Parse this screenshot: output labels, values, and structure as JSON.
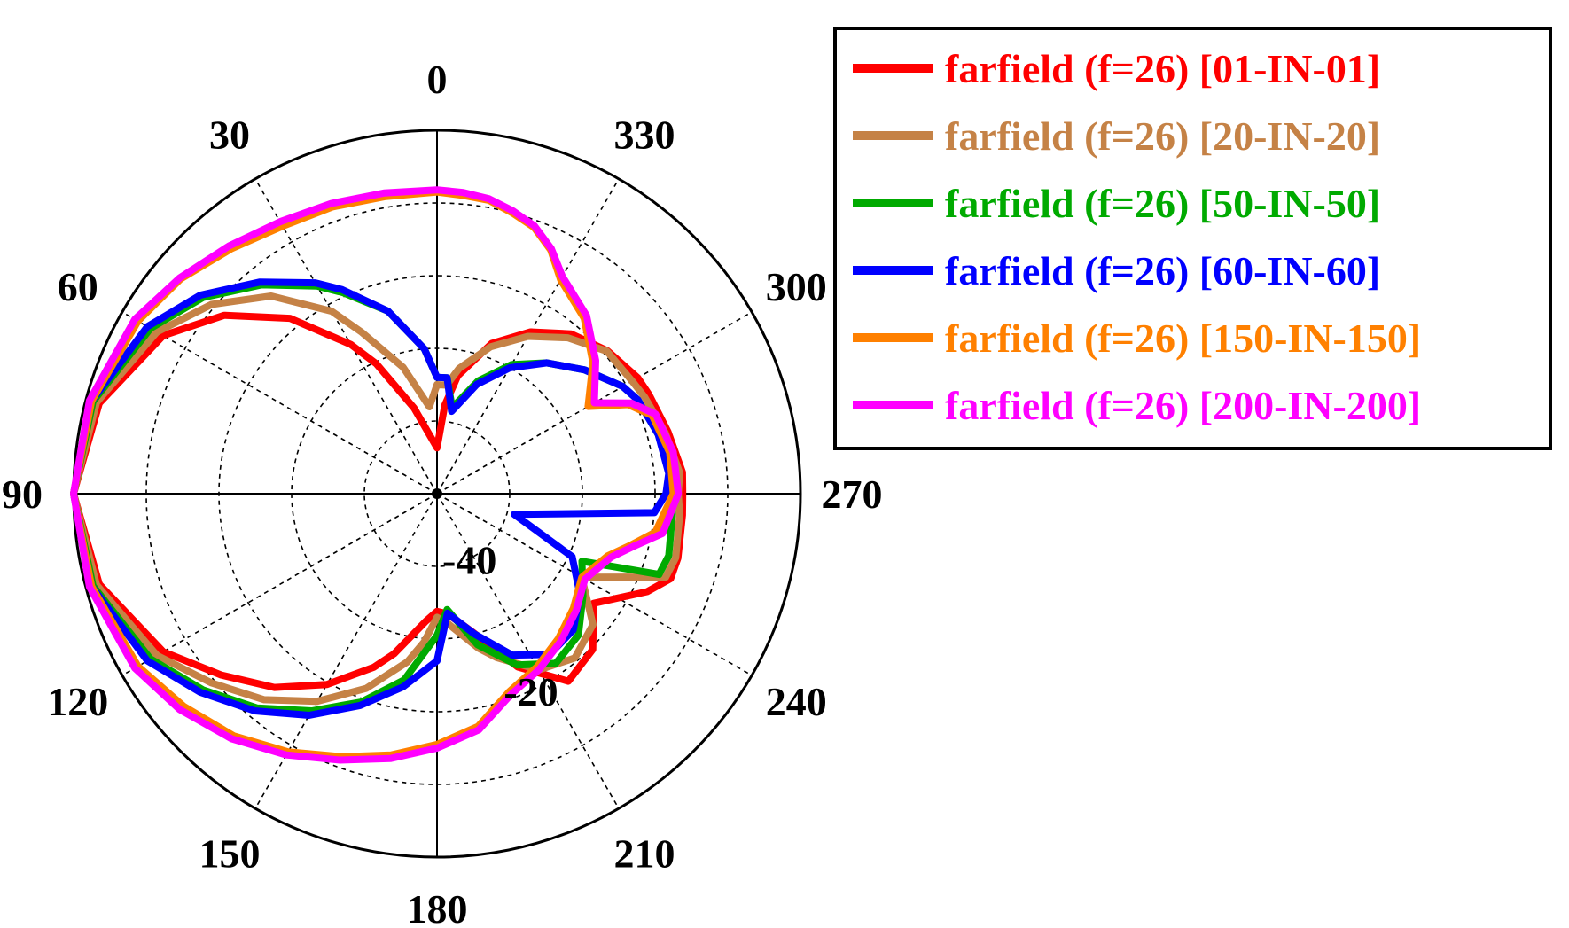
{
  "chart_data": {
    "type": "line",
    "subtype": "polar",
    "title": "",
    "angle_direction": "counterclockwise",
    "zero_direction": "top",
    "angle_ticks": [
      0,
      30,
      60,
      90,
      120,
      150,
      180,
      210,
      240,
      270,
      300,
      330
    ],
    "angle_tick_labels": [
      "0",
      "30",
      "60",
      "90",
      "120",
      "150",
      "180",
      "210",
      "240",
      "270",
      "300",
      "330"
    ],
    "radial_range": [
      -50,
      0
    ],
    "radial_tick_labels": [
      {
        "value": -40,
        "label": "-40"
      },
      {
        "value": -20,
        "label": "-20"
      }
    ],
    "grid": true,
    "legend_position": "top-right",
    "series": [
      {
        "name": "farfield (f=26) [01-IN-01]",
        "color": "#ff0000",
        "theta": [
          0,
          15,
          25,
          30,
          40,
          50,
          60,
          75,
          90,
          105,
          120,
          130,
          140,
          150,
          160,
          165,
          175,
          180,
          185,
          195,
          205,
          215,
          225,
          235,
          245,
          250,
          255,
          265,
          270,
          275,
          285,
          295,
          300,
          310,
          320,
          330,
          340,
          350,
          355,
          360
        ],
        "r": [
          -43.7,
          -37.8,
          -30.3,
          -26.3,
          -18.5,
          -11.8,
          -6.5,
          -1.9,
          0,
          -1.9,
          -6.5,
          -11.2,
          -15.2,
          -19.7,
          -24.6,
          -27.2,
          -32.4,
          -33.8,
          -33.4,
          -30.1,
          -23.7,
          -18.5,
          -19.7,
          -23.7,
          -18.1,
          -15.8,
          -15.7,
          -16.1,
          -16.2,
          -16.1,
          -17.1,
          -17.8,
          -18.1,
          -19.4,
          -21.3,
          -24.3,
          -28.0,
          -33.5,
          -37.8,
          -43.7
        ]
      },
      {
        "name": "farfield (f=26) [20-IN-20]",
        "color": "#c58246",
        "theta": [
          0,
          5,
          15,
          25,
          30,
          40,
          50,
          60,
          75,
          90,
          105,
          120,
          130,
          140,
          150,
          160,
          170,
          175,
          180,
          185,
          195,
          200,
          210,
          220,
          230,
          240,
          250,
          255,
          265,
          270,
          275,
          285,
          295,
          300,
          310,
          320,
          330,
          340,
          350,
          355,
          360
        ],
        "r": [
          -35.0,
          -38.0,
          -32.0,
          -25.5,
          -21.0,
          -14.5,
          -9.5,
          -5.5,
          -1.5,
          0,
          -1.5,
          -5.5,
          -9.5,
          -13.0,
          -17.0,
          -21.5,
          -26.5,
          -29.5,
          -33.0,
          -32.0,
          -28.0,
          -26.0,
          -22.0,
          -20.5,
          -22.0,
          -27.0,
          -16.5,
          -16.0,
          -16.5,
          -16.8,
          -16.5,
          -17.5,
          -18.5,
          -19.0,
          -19.5,
          -22.0,
          -25.0,
          -28.5,
          -32.5,
          -35.0,
          -35.0
        ]
      },
      {
        "name": "farfield (f=26) [50-IN-50]",
        "color": "#00aa00",
        "theta": [
          0,
          5,
          15,
          25,
          30,
          40,
          50,
          60,
          75,
          90,
          105,
          120,
          130,
          140,
          150,
          160,
          170,
          180,
          185,
          195,
          205,
          215,
          225,
          235,
          245,
          250,
          255,
          265,
          270,
          275,
          285,
          295,
          300,
          310,
          320,
          330,
          340,
          350,
          355,
          360
        ],
        "r": [
          -34.0,
          -30.0,
          -24.0,
          -19.5,
          -17.0,
          -12.5,
          -8.0,
          -4.5,
          -1.0,
          0,
          -1.0,
          -4.5,
          -8.0,
          -11.5,
          -15.5,
          -19.5,
          -24.0,
          -30.5,
          -34.0,
          -28.5,
          -24.0,
          -21.5,
          -22.5,
          -25.5,
          -28.0,
          -17.5,
          -17.0,
          -17.5,
          -17.8,
          -17.5,
          -18.5,
          -19.5,
          -20.5,
          -23.5,
          -26.5,
          -29.5,
          -33.5,
          -38.0,
          -34.0,
          -34.0
        ]
      },
      {
        "name": "farfield (f=26) [60-IN-60]",
        "color": "#0000ff",
        "theta": [
          0,
          5,
          15,
          25,
          30,
          40,
          50,
          60,
          75,
          90,
          105,
          120,
          130,
          140,
          150,
          160,
          170,
          180,
          185,
          195,
          205,
          215,
          225,
          235,
          245,
          255,
          265,
          270,
          275,
          285,
          295,
          300,
          310,
          320,
          330,
          340,
          350,
          355,
          360
        ],
        "r": [
          -34.0,
          -30.0,
          -24.0,
          -19.0,
          -16.5,
          -12.0,
          -7.5,
          -4.0,
          -0.8,
          0,
          -0.8,
          -4.0,
          -7.5,
          -11.0,
          -14.8,
          -19.0,
          -23.0,
          -27.0,
          -33.5,
          -30.0,
          -25.5,
          -23.0,
          -23.5,
          -26.0,
          -29.5,
          -39.0,
          -20.0,
          -18.5,
          -18.0,
          -18.5,
          -19.5,
          -20.5,
          -23.5,
          -26.5,
          -30.0,
          -34.0,
          -38.5,
          -34.0,
          -34.0
        ]
      },
      {
        "name": "farfield (f=26) [150-IN-150]",
        "color": "#ff8000",
        "theta": [
          0,
          10,
          20,
          30,
          40,
          50,
          60,
          75,
          90,
          105,
          120,
          130,
          140,
          150,
          160,
          170,
          180,
          190,
          200,
          210,
          220,
          230,
          240,
          250,
          255,
          260,
          270,
          280,
          290,
          295,
          300,
          310,
          320,
          330,
          335,
          340,
          345,
          350,
          355,
          360
        ],
        "r": [
          -8.5,
          -8.5,
          -8.0,
          -7.5,
          -6.0,
          -4.0,
          -2.5,
          -0.8,
          0,
          -0.8,
          -2.5,
          -4.5,
          -6.5,
          -9.0,
          -11.5,
          -13.5,
          -15.5,
          -17.5,
          -21.0,
          -22.5,
          -24.0,
          -25.5,
          -27.0,
          -25.0,
          -22.5,
          -19.5,
          -17.5,
          -17.5,
          -18.5,
          -21.0,
          -26.0,
          -22.0,
          -18.5,
          -16.0,
          -13.0,
          -11.0,
          -10.0,
          -9.0,
          -8.8,
          -8.5
        ]
      },
      {
        "name": "farfield (f=26) [200-IN-200]",
        "color": "#ff00ff",
        "theta": [
          0,
          10,
          20,
          30,
          40,
          50,
          60,
          75,
          90,
          105,
          120,
          130,
          140,
          150,
          160,
          170,
          180,
          190,
          200,
          210,
          220,
          230,
          240,
          250,
          255,
          260,
          270,
          280,
          290,
          295,
          300,
          310,
          320,
          330,
          335,
          340,
          345,
          350,
          355,
          360
        ],
        "r": [
          -8.2,
          -8.0,
          -7.5,
          -6.8,
          -5.5,
          -3.8,
          -2.0,
          -0.5,
          0,
          -0.5,
          -2.0,
          -3.8,
          -6.0,
          -8.5,
          -11.0,
          -13.0,
          -15.0,
          -17.0,
          -20.5,
          -22.0,
          -23.5,
          -25.0,
          -26.5,
          -24.5,
          -22.0,
          -18.5,
          -16.8,
          -17.0,
          -18.0,
          -20.5,
          -25.0,
          -21.5,
          -18.0,
          -15.5,
          -12.8,
          -10.8,
          -9.7,
          -8.8,
          -8.4,
          -8.2
        ]
      }
    ]
  }
}
